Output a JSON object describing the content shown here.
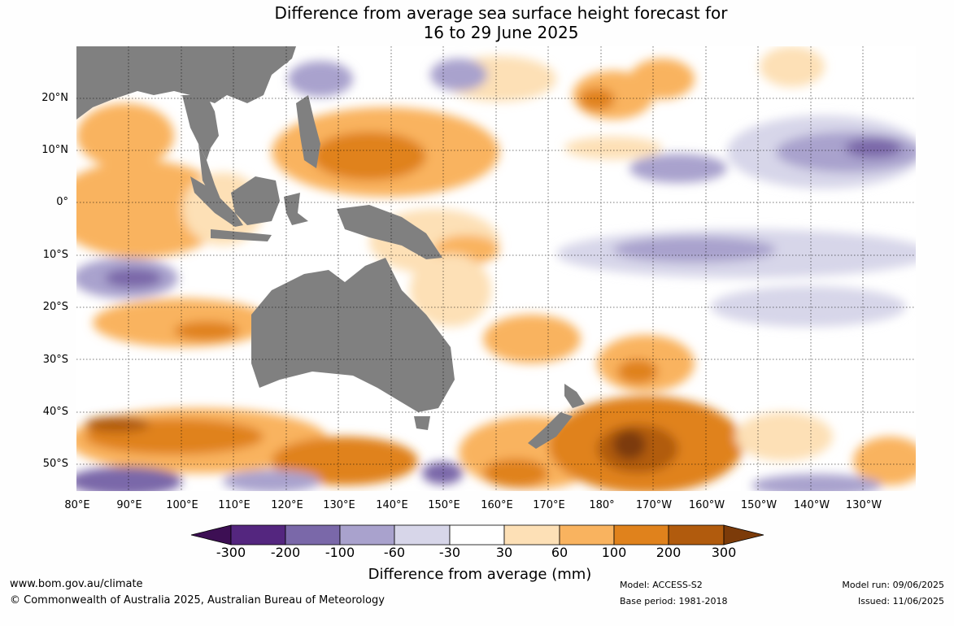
{
  "title": {
    "line1": "Difference from average sea surface height forecast for",
    "line2": "16 to 29 June 2025"
  },
  "map": {
    "lat_labels": [
      "20°N",
      "10°N",
      "0°",
      "10°S",
      "20°S",
      "30°S",
      "40°S",
      "50°S"
    ],
    "lon_labels": [
      "80°E",
      "90°E",
      "100°E",
      "110°E",
      "120°E",
      "130°E",
      "140°E",
      "150°E",
      "160°E",
      "170°E",
      "180°",
      "170°W",
      "160°W",
      "150°W",
      "140°W",
      "130°W"
    ],
    "land_color": "#808080",
    "grid_style": "dotted"
  },
  "colorbar": {
    "ticks": [
      "-300",
      "-200",
      "-100",
      "-60",
      "-30",
      "30",
      "60",
      "100",
      "200",
      "300"
    ],
    "colors": [
      "#3d0f54",
      "#54267f",
      "#7a68a9",
      "#a9a2cd",
      "#d7d6e9",
      "#ffffff",
      "#fde0b6",
      "#f9b35f",
      "#e0821c",
      "#b15b0d",
      "#7c3b09"
    ],
    "title": "Difference from average (mm)"
  },
  "footer": {
    "url": "www.bom.gov.au/climate",
    "copyright": "© Commonwealth of Australia 2025, Australian Bureau of Meteorology",
    "model": "Model: ACCESS-S2",
    "base_period": "Base period: 1981-2018",
    "model_run": "Model run: 09/06/2025",
    "issued": "Issued: 11/06/2025"
  }
}
